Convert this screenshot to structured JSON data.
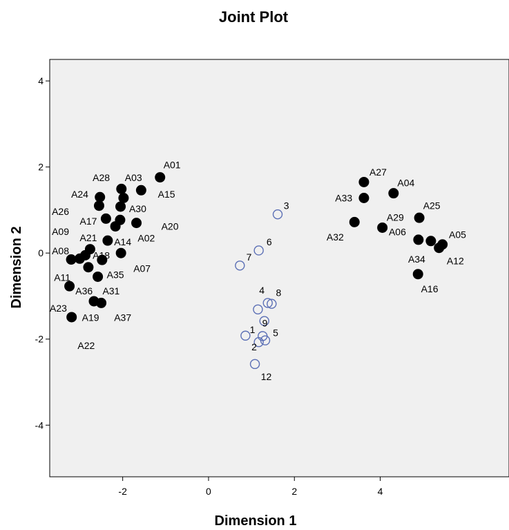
{
  "chart_data": {
    "type": "scatter",
    "title": "Joint Plot",
    "xlabel": "Dimension 1",
    "ylabel": "Dimension 2",
    "xlim": [
      -3.7,
      7.0
    ],
    "ylim": [
      -5.2,
      4.5
    ],
    "x_ticks": [
      -2,
      0,
      2,
      4
    ],
    "y_ticks": [
      4,
      2,
      0,
      -2,
      -4
    ],
    "grid": false,
    "legend": "none",
    "colors": {
      "filled": "#000000",
      "open": "#5b6fb5",
      "plot_bg": "#f0f0f0"
    },
    "series": [
      {
        "marker": "filled-circle",
        "points": [
          {
            "x": -1.13,
            "y": 1.76
          },
          {
            "x": -2.53,
            "y": 1.3
          },
          {
            "x": -2.55,
            "y": 1.1
          },
          {
            "x": -2.03,
            "y": 1.49
          },
          {
            "x": -1.98,
            "y": 1.28
          },
          {
            "x": -2.05,
            "y": 1.08
          },
          {
            "x": -1.57,
            "y": 1.46
          },
          {
            "x": -2.39,
            "y": 0.8
          },
          {
            "x": -2.17,
            "y": 0.62
          },
          {
            "x": -2.06,
            "y": 0.77
          },
          {
            "x": -1.68,
            "y": 0.7
          },
          {
            "x": -2.35,
            "y": 0.29
          },
          {
            "x": -2.76,
            "y": 0.09
          },
          {
            "x": -2.87,
            "y": -0.05
          },
          {
            "x": -3.0,
            "y": -0.13
          },
          {
            "x": -3.2,
            "y": -0.15
          },
          {
            "x": -2.48,
            "y": -0.16
          },
          {
            "x": -2.04,
            "y": 0.0
          },
          {
            "x": -2.8,
            "y": -0.33
          },
          {
            "x": -2.58,
            "y": -0.55
          },
          {
            "x": -3.24,
            "y": -0.77
          },
          {
            "x": -2.67,
            "y": -1.12
          },
          {
            "x": -2.5,
            "y": -1.16
          },
          {
            "x": -3.19,
            "y": -1.49
          },
          {
            "x": 3.62,
            "y": 1.65
          },
          {
            "x": 4.31,
            "y": 1.39
          },
          {
            "x": 3.62,
            "y": 1.28
          },
          {
            "x": 4.91,
            "y": 0.82
          },
          {
            "x": 3.4,
            "y": 0.72
          },
          {
            "x": 4.05,
            "y": 0.59
          },
          {
            "x": 4.89,
            "y": 0.31
          },
          {
            "x": 5.18,
            "y": 0.28
          },
          {
            "x": 5.45,
            "y": 0.2
          },
          {
            "x": 5.37,
            "y": 0.12
          },
          {
            "x": 4.88,
            "y": -0.49
          }
        ]
      },
      {
        "marker": "open-circle",
        "points": [
          {
            "x": 1.61,
            "y": 0.9
          },
          {
            "x": 1.17,
            "y": 0.06
          },
          {
            "x": 0.73,
            "y": -0.29
          },
          {
            "x": 1.38,
            "y": -1.16
          },
          {
            "x": 1.47,
            "y": -1.18
          },
          {
            "x": 1.15,
            "y": -1.31
          },
          {
            "x": 1.3,
            "y": -1.58
          },
          {
            "x": 0.86,
            "y": -1.92
          },
          {
            "x": 1.26,
            "y": -1.93
          },
          {
            "x": 1.32,
            "y": -2.03
          },
          {
            "x": 1.17,
            "y": -2.07
          },
          {
            "x": 1.08,
            "y": -2.58
          }
        ]
      }
    ],
    "annotations": [
      {
        "text": "A01",
        "x": -1.05,
        "y": 2.05
      },
      {
        "text": "A28",
        "x": -2.7,
        "y": 1.75
      },
      {
        "text": "A03",
        "x": -1.95,
        "y": 1.75
      },
      {
        "text": "A24",
        "x": -3.2,
        "y": 1.37
      },
      {
        "text": "A15",
        "x": -1.18,
        "y": 1.37
      },
      {
        "text": "A26",
        "x": -3.65,
        "y": 0.97
      },
      {
        "text": "A30",
        "x": -1.85,
        "y": 1.03
      },
      {
        "text": "A17",
        "x": -3.0,
        "y": 0.74
      },
      {
        "text": "A20",
        "x": -1.1,
        "y": 0.62
      },
      {
        "text": "A09",
        "x": -3.65,
        "y": 0.5
      },
      {
        "text": "A21",
        "x": -3.0,
        "y": 0.36
      },
      {
        "text": "A14",
        "x": -2.2,
        "y": 0.26
      },
      {
        "text": "A02",
        "x": -1.65,
        "y": 0.35
      },
      {
        "text": "A08",
        "x": -3.65,
        "y": 0.05
      },
      {
        "text": "A18",
        "x": -2.7,
        "y": -0.05
      },
      {
        "text": "A07",
        "x": -1.75,
        "y": -0.36
      },
      {
        "text": "A35",
        "x": -2.37,
        "y": -0.5
      },
      {
        "text": "A11",
        "x": -3.6,
        "y": -0.57
      },
      {
        "text": "A36",
        "x": -3.1,
        "y": -0.88
      },
      {
        "text": "A31",
        "x": -2.47,
        "y": -0.88
      },
      {
        "text": "A23",
        "x": -3.7,
        "y": -1.28
      },
      {
        "text": "A19",
        "x": -2.95,
        "y": -1.5
      },
      {
        "text": "A37",
        "x": -2.2,
        "y": -1.5
      },
      {
        "text": "A22",
        "x": -3.05,
        "y": -2.15
      },
      {
        "text": "A27",
        "x": 3.75,
        "y": 1.88
      },
      {
        "text": "A04",
        "x": 4.4,
        "y": 1.63
      },
      {
        "text": "A33",
        "x": 2.95,
        "y": 1.28
      },
      {
        "text": "A25",
        "x": 5.0,
        "y": 1.1
      },
      {
        "text": "A29",
        "x": 4.15,
        "y": 0.83
      },
      {
        "text": "A32",
        "x": 2.75,
        "y": 0.37
      },
      {
        "text": "A06",
        "x": 4.2,
        "y": 0.49
      },
      {
        "text": "A05",
        "x": 5.6,
        "y": 0.43
      },
      {
        "text": "A34",
        "x": 4.65,
        "y": -0.14
      },
      {
        "text": "A12",
        "x": 5.55,
        "y": -0.18
      },
      {
        "text": "A16",
        "x": 4.95,
        "y": -0.83
      },
      {
        "text": "3",
        "x": 1.75,
        "y": 1.1
      },
      {
        "text": "6",
        "x": 1.35,
        "y": 0.26
      },
      {
        "text": "7",
        "x": 0.88,
        "y": -0.09
      },
      {
        "text": "4",
        "x": 1.18,
        "y": -0.86
      },
      {
        "text": "8",
        "x": 1.57,
        "y": -0.92
      },
      {
        "text": "9",
        "x": 1.25,
        "y": -1.63
      },
      {
        "text": "1",
        "x": 0.96,
        "y": -1.78
      },
      {
        "text": "5",
        "x": 1.5,
        "y": -1.85
      },
      {
        "text": "2",
        "x": 1.0,
        "y": -2.18
      },
      {
        "text": "12",
        "x": 1.22,
        "y": -2.87
      }
    ]
  }
}
